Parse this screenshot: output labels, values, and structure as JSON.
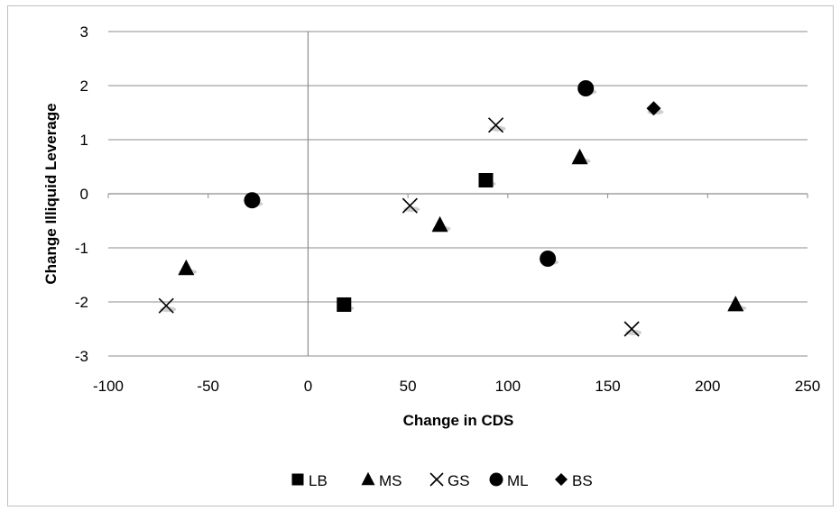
{
  "chart_data": {
    "type": "scatter",
    "xlabel": "Change in CDS",
    "ylabel": "Change Illiquid Leverage",
    "xlim": [
      -100,
      250
    ],
    "ylim": [
      -3,
      3
    ],
    "x_ticks": [
      -100,
      -50,
      0,
      50,
      100,
      150,
      200,
      250
    ],
    "y_ticks": [
      -3,
      -2,
      -1,
      0,
      1,
      2,
      3
    ],
    "grid": "horizontal",
    "legend_position": "bottom",
    "series": [
      {
        "name": "LB",
        "marker": "square",
        "color": "#000000",
        "points": [
          [
            18,
            -2.05
          ],
          [
            89,
            0.25
          ]
        ]
      },
      {
        "name": "MS",
        "marker": "triangle",
        "color": "#000000",
        "points": [
          [
            -61,
            -1.38
          ],
          [
            66,
            -0.58
          ],
          [
            136,
            0.67
          ],
          [
            214,
            -2.05
          ]
        ]
      },
      {
        "name": "GS",
        "marker": "x",
        "color": "#000000",
        "points": [
          [
            -71,
            -2.07
          ],
          [
            51,
            -0.22
          ],
          [
            94,
            1.27
          ],
          [
            162,
            -2.5
          ]
        ]
      },
      {
        "name": "ML",
        "marker": "circle",
        "color": "#000000",
        "points": [
          [
            -28,
            -0.12
          ],
          [
            120,
            -1.2
          ],
          [
            139,
            1.95
          ]
        ]
      },
      {
        "name": "BS",
        "marker": "diamond",
        "color": "#000000",
        "points": [
          [
            173,
            1.58
          ]
        ]
      }
    ]
  }
}
